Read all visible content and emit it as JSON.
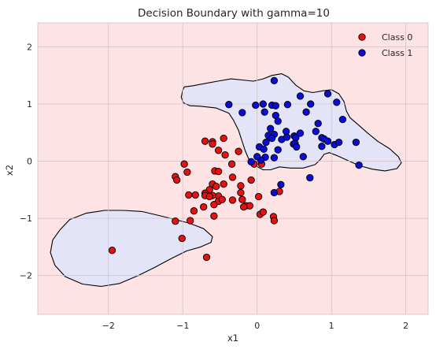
{
  "chart_data": {
    "type": "scatter",
    "title": "Decision Boundary with gamma=10",
    "xlabel": "x1",
    "ylabel": "x2",
    "xlim": [
      -2.95,
      2.3
    ],
    "ylim": [
      -2.68,
      2.42
    ],
    "xticks": [
      -2,
      -1,
      0,
      1,
      2
    ],
    "yticks": [
      -2,
      -1,
      0,
      1,
      2
    ],
    "grid": true,
    "legend_position": "top-right",
    "colors": {
      "background_region": "#fde3e3",
      "class1_region": "#e4e4f8",
      "boundary": "#000000",
      "grid": "#d3c3c3",
      "class0": "#e81010",
      "class1": "#0b0bd8"
    },
    "regions": [
      {
        "label": "class1-region-upper",
        "points": [
          [
            -0.98,
            1.3
          ],
          [
            -0.86,
            1.32
          ],
          [
            -0.7,
            1.36
          ],
          [
            -0.53,
            1.4
          ],
          [
            -0.35,
            1.44
          ],
          [
            -0.2,
            1.42
          ],
          [
            -0.05,
            1.4
          ],
          [
            0.08,
            1.44
          ],
          [
            0.2,
            1.5
          ],
          [
            0.33,
            1.53
          ],
          [
            0.42,
            1.47
          ],
          [
            0.52,
            1.33
          ],
          [
            0.63,
            1.23
          ],
          [
            0.75,
            1.2
          ],
          [
            0.88,
            1.23
          ],
          [
            1.0,
            1.25
          ],
          [
            1.1,
            1.18
          ],
          [
            1.17,
            1.04
          ],
          [
            1.2,
            0.88
          ],
          [
            1.25,
            0.76
          ],
          [
            1.35,
            0.65
          ],
          [
            1.48,
            0.5
          ],
          [
            1.62,
            0.35
          ],
          [
            1.78,
            0.22
          ],
          [
            1.9,
            0.08
          ],
          [
            1.94,
            -0.03
          ],
          [
            1.88,
            -0.13
          ],
          [
            1.72,
            -0.17
          ],
          [
            1.55,
            -0.14
          ],
          [
            1.38,
            -0.08
          ],
          [
            1.22,
            0.01
          ],
          [
            1.07,
            0.1
          ],
          [
            0.97,
            0.15
          ],
          [
            0.9,
            0.12
          ],
          [
            0.85,
            0.03
          ],
          [
            0.78,
            -0.06
          ],
          [
            0.62,
            -0.12
          ],
          [
            0.45,
            -0.12
          ],
          [
            0.3,
            -0.1
          ],
          [
            0.18,
            -0.15
          ],
          [
            0.08,
            -0.15
          ],
          [
            -0.02,
            -0.08
          ],
          [
            -0.1,
            0.0
          ],
          [
            -0.16,
            0.18
          ],
          [
            -0.25,
            0.54
          ],
          [
            -0.32,
            0.72
          ],
          [
            -0.38,
            0.84
          ],
          [
            -0.55,
            0.93
          ],
          [
            -0.75,
            0.96
          ],
          [
            -0.9,
            0.97
          ],
          [
            -0.99,
            1.02
          ],
          [
            -1.02,
            1.12
          ],
          [
            -1.0,
            1.24
          ]
        ]
      },
      {
        "label": "class1-region-lower",
        "points": [
          [
            -2.65,
            -1.2
          ],
          [
            -2.52,
            -1.02
          ],
          [
            -2.3,
            -0.91
          ],
          [
            -2.05,
            -0.86
          ],
          [
            -1.8,
            -0.86
          ],
          [
            -1.55,
            -0.88
          ],
          [
            -1.32,
            -0.95
          ],
          [
            -1.1,
            -1.02
          ],
          [
            -0.9,
            -1.09
          ],
          [
            -0.72,
            -1.18
          ],
          [
            -0.6,
            -1.32
          ],
          [
            -0.62,
            -1.42
          ],
          [
            -0.76,
            -1.5
          ],
          [
            -0.95,
            -1.57
          ],
          [
            -1.15,
            -1.7
          ],
          [
            -1.38,
            -1.86
          ],
          [
            -1.6,
            -2.0
          ],
          [
            -1.85,
            -2.14
          ],
          [
            -2.1,
            -2.19
          ],
          [
            -2.35,
            -2.15
          ],
          [
            -2.58,
            -2.02
          ],
          [
            -2.72,
            -1.82
          ],
          [
            -2.78,
            -1.6
          ],
          [
            -2.75,
            -1.38
          ]
        ]
      }
    ],
    "series": [
      {
        "name": "Class 0",
        "points": [
          [
            -0.7,
            0.35
          ],
          [
            -0.6,
            0.34
          ],
          [
            -0.45,
            0.4
          ],
          [
            -0.52,
            0.19
          ],
          [
            -0.43,
            0.11
          ],
          [
            -0.25,
            0.17
          ],
          [
            -0.6,
            0.3
          ],
          [
            -0.98,
            -0.05
          ],
          [
            -0.94,
            -0.19
          ],
          [
            -1.1,
            -0.27
          ],
          [
            -1.08,
            -0.33
          ],
          [
            -0.83,
            -0.59
          ],
          [
            -0.92,
            -0.59
          ],
          [
            -0.57,
            -0.17
          ],
          [
            -0.52,
            -0.18
          ],
          [
            -0.6,
            -0.4
          ],
          [
            -0.55,
            -0.44
          ],
          [
            -0.45,
            -0.4
          ],
          [
            -0.33,
            -0.28
          ],
          [
            -0.22,
            -0.43
          ],
          [
            -0.22,
            -0.55
          ],
          [
            -0.2,
            -0.67
          ],
          [
            -0.08,
            -0.33
          ],
          [
            -0.52,
            -0.61
          ],
          [
            -0.64,
            -0.5
          ],
          [
            -0.7,
            -0.56
          ],
          [
            -0.7,
            -0.6
          ],
          [
            -0.6,
            -0.6
          ],
          [
            -0.64,
            -0.62
          ],
          [
            -0.52,
            -0.7
          ],
          [
            -0.47,
            -0.67
          ],
          [
            -0.33,
            -0.68
          ],
          [
            -0.15,
            -0.78
          ],
          [
            -0.1,
            -0.78
          ],
          [
            -0.18,
            -0.8
          ],
          [
            -0.58,
            -0.76
          ],
          [
            -0.72,
            -0.8
          ],
          [
            -0.85,
            -0.87
          ],
          [
            -0.58,
            -0.96
          ],
          [
            -0.9,
            -1.04
          ],
          [
            -1.1,
            -1.05
          ],
          [
            -1.01,
            -1.35
          ],
          [
            -0.68,
            -1.68
          ],
          [
            -1.95,
            -1.56
          ],
          [
            0.02,
            -0.62
          ],
          [
            0.04,
            -0.93
          ],
          [
            0.08,
            -0.89
          ],
          [
            0.22,
            -0.97
          ],
          [
            0.23,
            -1.04
          ],
          [
            0.3,
            -0.53
          ],
          [
            0.06,
            -0.05
          ],
          [
            -0.04,
            -0.05
          ],
          [
            -0.34,
            -0.05
          ]
        ]
      },
      {
        "name": "Class 1",
        "points": [
          [
            0.23,
            1.41
          ],
          [
            -0.38,
            0.99
          ],
          [
            -0.2,
            0.85
          ],
          [
            -0.02,
            0.98
          ],
          [
            0.08,
            1.0
          ],
          [
            0.1,
            0.86
          ],
          [
            0.2,
            0.98
          ],
          [
            0.25,
            0.97
          ],
          [
            0.25,
            0.8
          ],
          [
            0.41,
            0.99
          ],
          [
            0.58,
            1.14
          ],
          [
            0.66,
            0.86
          ],
          [
            0.72,
            1.0
          ],
          [
            0.95,
            1.18
          ],
          [
            1.07,
            1.03
          ],
          [
            0.28,
            0.7
          ],
          [
            0.18,
            0.57
          ],
          [
            0.15,
            0.45
          ],
          [
            0.23,
            0.47
          ],
          [
            0.2,
            0.4
          ],
          [
            0.39,
            0.52
          ],
          [
            0.5,
            0.44
          ],
          [
            0.52,
            0.41
          ],
          [
            0.58,
            0.49
          ],
          [
            0.49,
            0.3
          ],
          [
            0.51,
            0.31
          ],
          [
            0.53,
            0.25
          ],
          [
            0.33,
            0.38
          ],
          [
            0.4,
            0.42
          ],
          [
            0.12,
            0.33
          ],
          [
            0.03,
            0.25
          ],
          [
            0.09,
            0.21
          ],
          [
            0.28,
            0.2
          ],
          [
            0.11,
            0.07
          ],
          [
            0.05,
            0.02
          ],
          [
            0.23,
            0.06
          ],
          [
            0.62,
            0.08
          ],
          [
            0.79,
            0.52
          ],
          [
            0.87,
            0.41
          ],
          [
            0.9,
            0.39
          ],
          [
            0.82,
            0.66
          ],
          [
            0.95,
            0.35
          ],
          [
            1.04,
            0.29
          ],
          [
            1.1,
            0.33
          ],
          [
            0.87,
            0.26
          ],
          [
            1.33,
            0.33
          ],
          [
            1.37,
            -0.07
          ],
          [
            1.15,
            0.73
          ],
          [
            0.23,
            -0.55
          ],
          [
            0.32,
            -0.41
          ],
          [
            0.71,
            -0.29
          ],
          [
            -0.08,
            -0.01
          ],
          [
            0.0,
            0.08
          ]
        ]
      }
    ],
    "legend": [
      "Class 0",
      "Class 1"
    ]
  }
}
